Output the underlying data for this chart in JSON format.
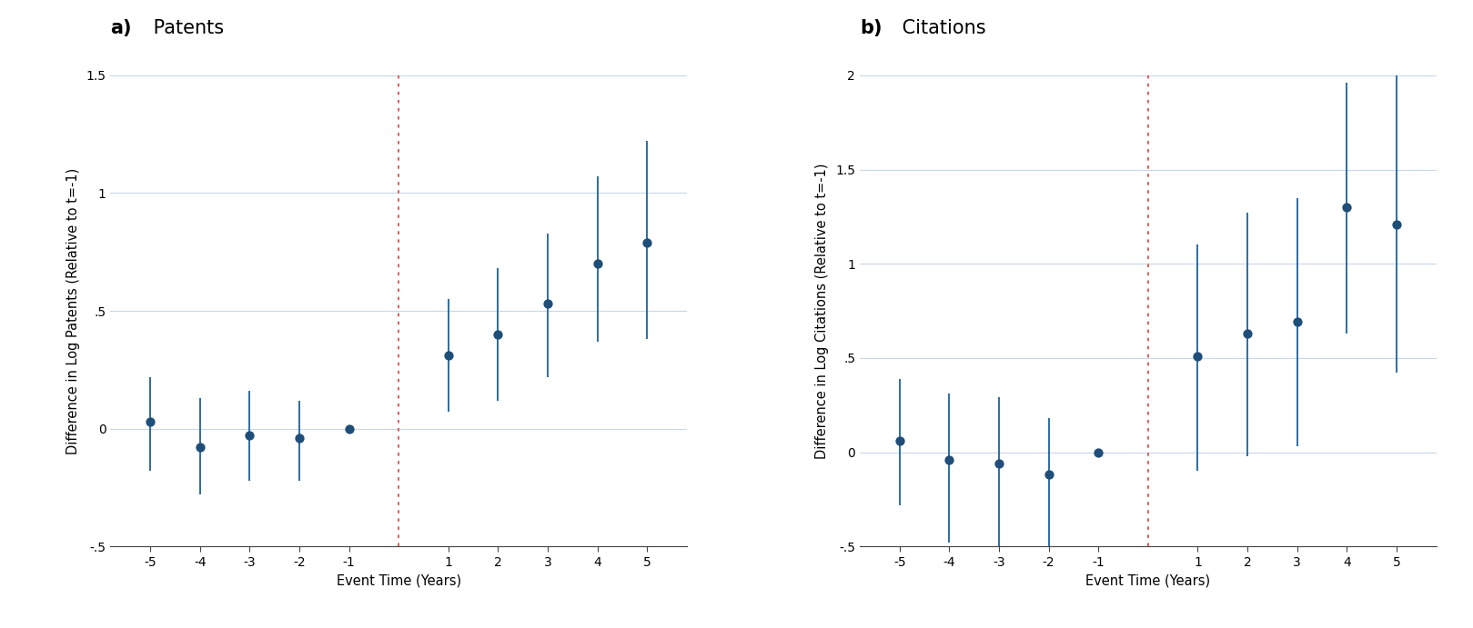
{
  "panel_a": {
    "title_bold": "a)",
    "title_normal": " Patents",
    "ylabel": "Difference in Log Patents (Relative to t=-1)",
    "xlabel": "Event Time (Years)",
    "x": [
      -5,
      -4,
      -3,
      -2,
      -1,
      1,
      2,
      3,
      4,
      5
    ],
    "y": [
      0.03,
      -0.08,
      -0.03,
      -0.04,
      0.0,
      0.31,
      0.4,
      0.53,
      0.7,
      0.79
    ],
    "ci_lo": [
      -0.18,
      -0.28,
      -0.22,
      -0.22,
      0.0,
      0.07,
      0.12,
      0.22,
      0.37,
      0.38
    ],
    "ci_hi": [
      0.22,
      0.13,
      0.16,
      0.12,
      0.0,
      0.55,
      0.68,
      0.83,
      1.07,
      1.22
    ],
    "ylim": [
      -0.5,
      1.5
    ],
    "yticks": [
      -0.5,
      0.0,
      0.5,
      1.0,
      1.5
    ],
    "ytick_labels": [
      "-.5",
      "0",
      ".5",
      "1",
      "1.5"
    ],
    "vline_x": 0.0,
    "dot_color": "#1f4e79",
    "line_color": "#2d6ca2",
    "vline_color": "#d9534f"
  },
  "panel_b": {
    "title_bold": "b)",
    "title_normal": " Citations",
    "ylabel": "Difference in Log Citations (Relative to t=-1)",
    "xlabel": "Event Time (Years)",
    "x": [
      -5,
      -4,
      -3,
      -2,
      -1,
      1,
      2,
      3,
      4,
      5
    ],
    "y": [
      0.06,
      -0.04,
      -0.06,
      -0.12,
      0.0,
      0.51,
      0.63,
      0.69,
      1.3,
      1.21
    ],
    "ci_lo": [
      -0.28,
      -0.48,
      -0.5,
      -0.55,
      0.0,
      -0.1,
      -0.02,
      0.03,
      0.63,
      0.42
    ],
    "ci_hi": [
      0.39,
      0.31,
      0.29,
      0.18,
      0.0,
      1.1,
      1.27,
      1.35,
      1.96,
      2.0
    ],
    "ylim": [
      -0.5,
      2.0
    ],
    "yticks": [
      -0.5,
      0.0,
      0.5,
      1.0,
      1.5,
      2.0
    ],
    "ytick_labels": [
      "-.5",
      "0",
      ".5",
      "1",
      "1.5",
      "2"
    ],
    "vline_x": 0.0,
    "dot_color": "#1f4e79",
    "line_color": "#2d6ca2",
    "vline_color": "#d9534f"
  },
  "figsize": [
    16.19,
    6.91
  ],
  "dpi": 100,
  "background_color": "#ffffff",
  "grid_color": "#c8d8e8",
  "dot_size": 55,
  "title_fontsize": 15,
  "label_fontsize": 10.5,
  "tick_fontsize": 10
}
